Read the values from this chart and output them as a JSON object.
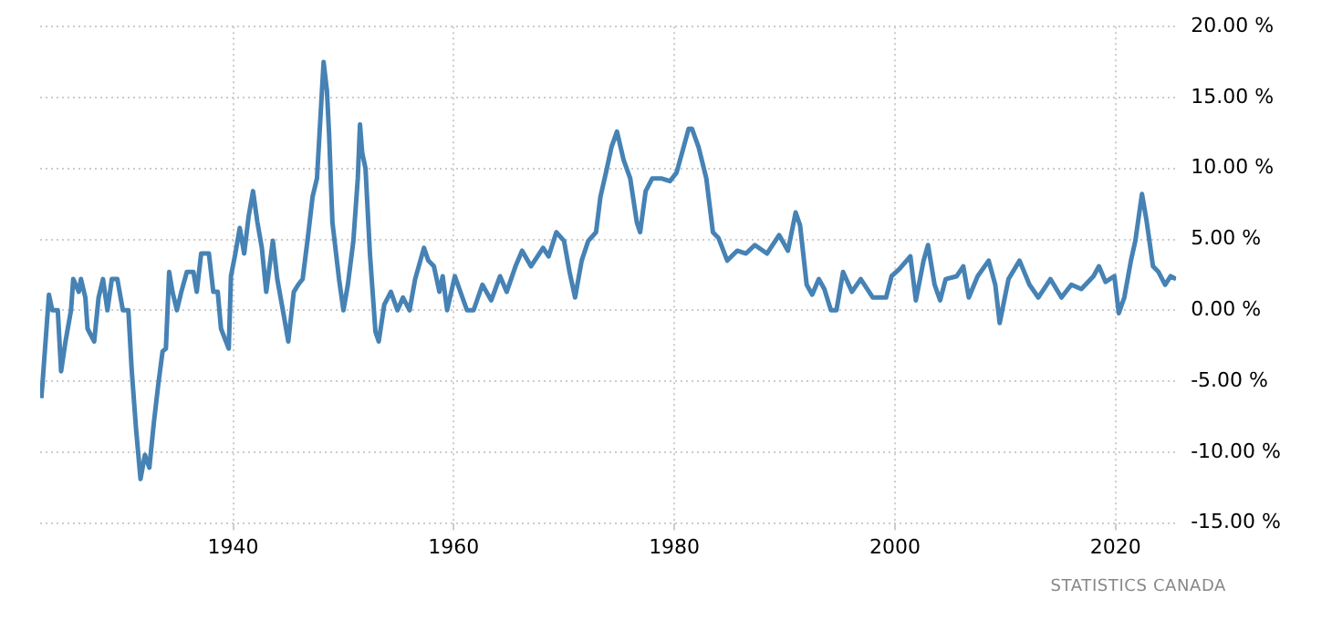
{
  "chart_data": {
    "type": "line",
    "annotations": [
      "STATISTICS CANADA"
    ],
    "series": [
      {
        "color": "#4682b4",
        "x": [
          1922.6,
          1922.7,
          1923.0,
          1923.3,
          1923.6,
          1924.1,
          1924.4,
          1924.8,
          1925.3,
          1925.5,
          1926.0,
          1926.2,
          1926.6,
          1926.8,
          1927.4,
          1927.8,
          1928.2,
          1928.6,
          1929.0,
          1929.5,
          1930.0,
          1930.5,
          1930.8,
          1931.2,
          1931.6,
          1932.0,
          1932.4,
          1932.8,
          1933.2,
          1933.6,
          1933.9,
          1934.2,
          1934.5,
          1934.9,
          1935.3,
          1935.8,
          1936.4,
          1936.7,
          1937.1,
          1937.8,
          1938.2,
          1938.6,
          1938.9,
          1939.6,
          1939.8,
          1940.2,
          1940.6,
          1941.0,
          1941.4,
          1941.8,
          1942.2,
          1942.6,
          1943.0,
          1943.6,
          1944.0,
          1944.6,
          1945.0,
          1945.5,
          1945.9,
          1946.3,
          1946.8,
          1947.2,
          1947.6,
          1948.2,
          1948.5,
          1948.7,
          1949.0,
          1949.6,
          1950.0,
          1950.4,
          1950.9,
          1951.3,
          1951.5,
          1951.7,
          1952.0,
          1952.4,
          1952.9,
          1953.2,
          1953.7,
          1954.3,
          1954.9,
          1955.4,
          1956.0,
          1956.5,
          1957.3,
          1957.7,
          1958.2,
          1958.7,
          1959.0,
          1959.4,
          1960.1,
          1961.2,
          1961.8,
          1962.6,
          1963.4,
          1964.2,
          1964.8,
          1965.6,
          1966.2,
          1967.0,
          1968.1,
          1968.6,
          1969.3,
          1970.0,
          1970.5,
          1971.0,
          1971.6,
          1972.2,
          1972.9,
          1973.3,
          1973.8,
          1974.3,
          1974.8,
          1975.4,
          1976.0,
          1976.6,
          1976.9,
          1977.4,
          1978.0,
          1978.8,
          1979.6,
          1980.2,
          1980.7,
          1981.3,
          1981.6,
          1982.2,
          1982.9,
          1983.5,
          1984.0,
          1984.8,
          1985.7,
          1986.5,
          1987.3,
          1988.4,
          1989.5,
          1990.3,
          1991.0,
          1991.4,
          1992.0,
          1992.5,
          1993.1,
          1993.6,
          1994.2,
          1994.7,
          1995.3,
          1996.1,
          1996.9,
          1998.0,
          1999.2,
          1999.7,
          2000.4,
          2001.4,
          2001.9,
          2002.6,
          2003.0,
          2003.6,
          2004.1,
          2004.6,
          2005.6,
          2006.2,
          2006.7,
          2007.5,
          2008.5,
          2009.1,
          2009.5,
          2010.3,
          2011.3,
          2012.2,
          2013.0,
          2014.1,
          2015.1,
          2016.0,
          2016.9,
          2018.0,
          2018.5,
          2019.1,
          2019.9,
          2020.3,
          2020.8,
          2021.4,
          2021.8,
          2022.4,
          2022.8,
          2023.4,
          2023.9,
          2024.5,
          2025.0,
          2025.5
        ],
        "values": [
          -6.2,
          -5.3,
          -2.1,
          1.1,
          0,
          0,
          -4.3,
          -2.2,
          0,
          2.2,
          1.3,
          2.2,
          0.9,
          -1.3,
          -2.2,
          0.9,
          2.2,
          0,
          2.2,
          2.2,
          0,
          0,
          -4.2,
          -8.4,
          -11.9,
          -10.2,
          -11.1,
          -8.0,
          -5.3,
          -2.9,
          -2.7,
          2.7,
          1.3,
          0,
          1.3,
          2.7,
          2.7,
          1.3,
          4.0,
          4.0,
          1.3,
          1.3,
          -1.3,
          -2.7,
          2.4,
          4.0,
          5.8,
          4.0,
          6.6,
          8.4,
          6.2,
          4.4,
          1.3,
          4.9,
          2.2,
          -0.4,
          -2.2,
          1.3,
          1.8,
          2.2,
          5.3,
          8.0,
          9.3,
          17.5,
          15.5,
          12.4,
          6.2,
          2.2,
          0,
          1.8,
          4.9,
          9.3,
          13.1,
          11.1,
          10.0,
          4.0,
          -1.5,
          -2.2,
          0.4,
          1.3,
          0,
          0.9,
          0,
          2.2,
          4.4,
          3.5,
          3.1,
          1.3,
          2.4,
          0,
          2.4,
          0,
          0,
          1.8,
          0.7,
          2.4,
          1.3,
          3.1,
          4.2,
          3.1,
          4.4,
          3.8,
          5.5,
          4.9,
          2.7,
          0.9,
          3.5,
          4.9,
          5.5,
          8.0,
          9.7,
          11.5,
          12.6,
          10.6,
          9.3,
          6.2,
          5.5,
          8.4,
          9.3,
          9.3,
          9.1,
          9.7,
          11.1,
          12.8,
          12.8,
          11.5,
          9.3,
          5.5,
          5.1,
          3.5,
          4.2,
          4.0,
          4.6,
          4.0,
          5.3,
          4.2,
          6.9,
          6.0,
          1.8,
          1.1,
          2.2,
          1.5,
          0,
          0,
          2.7,
          1.3,
          2.2,
          0.9,
          0.9,
          2.4,
          2.9,
          3.8,
          0.7,
          3.5,
          4.6,
          1.8,
          0.7,
          2.2,
          2.4,
          3.1,
          0.9,
          2.4,
          3.5,
          1.8,
          -0.9,
          2.2,
          3.5,
          1.8,
          0.9,
          2.2,
          0.9,
          1.8,
          1.5,
          2.4,
          3.1,
          2.0,
          2.4,
          -0.2,
          0.9,
          3.5,
          4.9,
          8.2,
          6.4,
          3.1,
          2.7,
          1.8,
          2.4,
          2.2
        ]
      }
    ],
    "xlim": [
      1922.5,
      2025.5
    ],
    "xticks": [
      1940,
      1960,
      1980,
      2000,
      2020
    ],
    "ylim": [
      -15,
      20
    ],
    "yticks": [
      {
        "value": -15,
        "label": "-15.00 %"
      },
      {
        "value": -10,
        "label": "-10.00 %"
      },
      {
        "value": -5,
        "label": "-5.00 %"
      },
      {
        "value": 0,
        "label": "0.00 %"
      },
      {
        "value": 5,
        "label": "5.00 %"
      },
      {
        "value": 10,
        "label": "10.00 %"
      },
      {
        "value": 15,
        "label": "15.00 %"
      },
      {
        "value": 20,
        "label": "20.00 %"
      }
    ],
    "grid": true,
    "legend": false,
    "marker": "none",
    "line_style": "solid"
  }
}
